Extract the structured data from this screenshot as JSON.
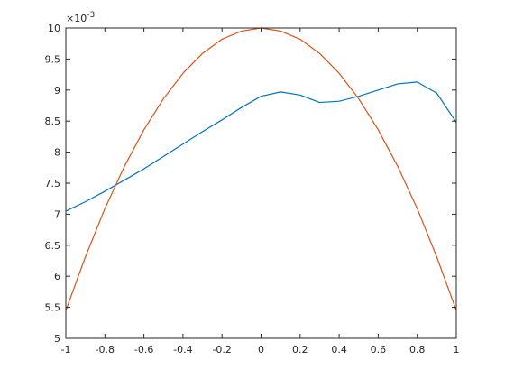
{
  "chart_data": {
    "type": "line",
    "y_multiplier": "×10",
    "y_multiplier_exponent": "-3",
    "x": [
      -1,
      -0.9,
      -0.8,
      -0.7,
      -0.6,
      -0.5,
      -0.4,
      -0.3,
      -0.2,
      -0.1,
      0,
      0.1,
      0.2,
      0.3,
      0.4,
      0.5,
      0.6,
      0.7,
      0.8,
      0.9,
      1
    ],
    "series": [
      {
        "color": "#0072bd",
        "values": [
          7.05,
          7.2,
          7.37,
          7.55,
          7.73,
          7.93,
          8.13,
          8.33,
          8.52,
          8.72,
          8.9,
          8.97,
          8.92,
          8.8,
          8.82,
          8.9,
          9.0,
          9.1,
          9.13,
          8.95,
          8.48
        ]
      },
      {
        "color": "#d95319",
        "values": [
          5.45,
          6.31,
          7.09,
          7.77,
          8.36,
          8.86,
          9.27,
          9.59,
          9.82,
          9.95,
          10,
          9.95,
          9.82,
          9.59,
          9.27,
          8.86,
          8.36,
          7.77,
          7.09,
          6.31,
          5.45
        ]
      }
    ],
    "xlim": [
      -1,
      1
    ],
    "xticks": [
      -1,
      -0.8,
      -0.6,
      -0.4,
      -0.2,
      0,
      0.2,
      0.4,
      0.6,
      0.8,
      1
    ],
    "ylim": [
      5,
      10
    ],
    "yticks": [
      5,
      5.5,
      6,
      6.5,
      7,
      7.5,
      8,
      8.5,
      9,
      9.5,
      10
    ],
    "grid": false
  }
}
